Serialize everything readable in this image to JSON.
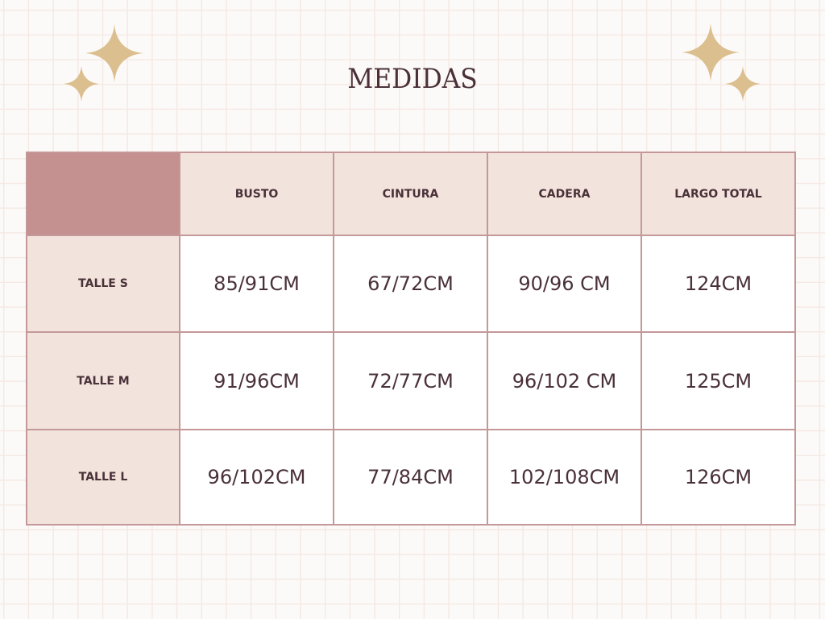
{
  "title": "MEDIDAS",
  "colors": {
    "accent": "#c49090",
    "header_bg": "#f2e4dd",
    "text": "#4a3139",
    "sparkle": "#dcbf8f"
  },
  "icons": [
    "sparkle-icon"
  ],
  "table": {
    "headers": [
      "BUSTO",
      "CINTURA",
      "CADERA",
      "LARGO TOTAL"
    ],
    "rows": [
      {
        "label": "TALLE S",
        "cells": [
          "85/91CM",
          "67/72CM",
          "90/96 CM",
          "124CM"
        ]
      },
      {
        "label": "TALLE M",
        "cells": [
          "91/96CM",
          "72/77CM",
          "96/102 CM",
          "125CM"
        ]
      },
      {
        "label": "TALLE L",
        "cells": [
          "96/102CM",
          "77/84CM",
          "102/108CM",
          "126CM"
        ]
      }
    ]
  }
}
